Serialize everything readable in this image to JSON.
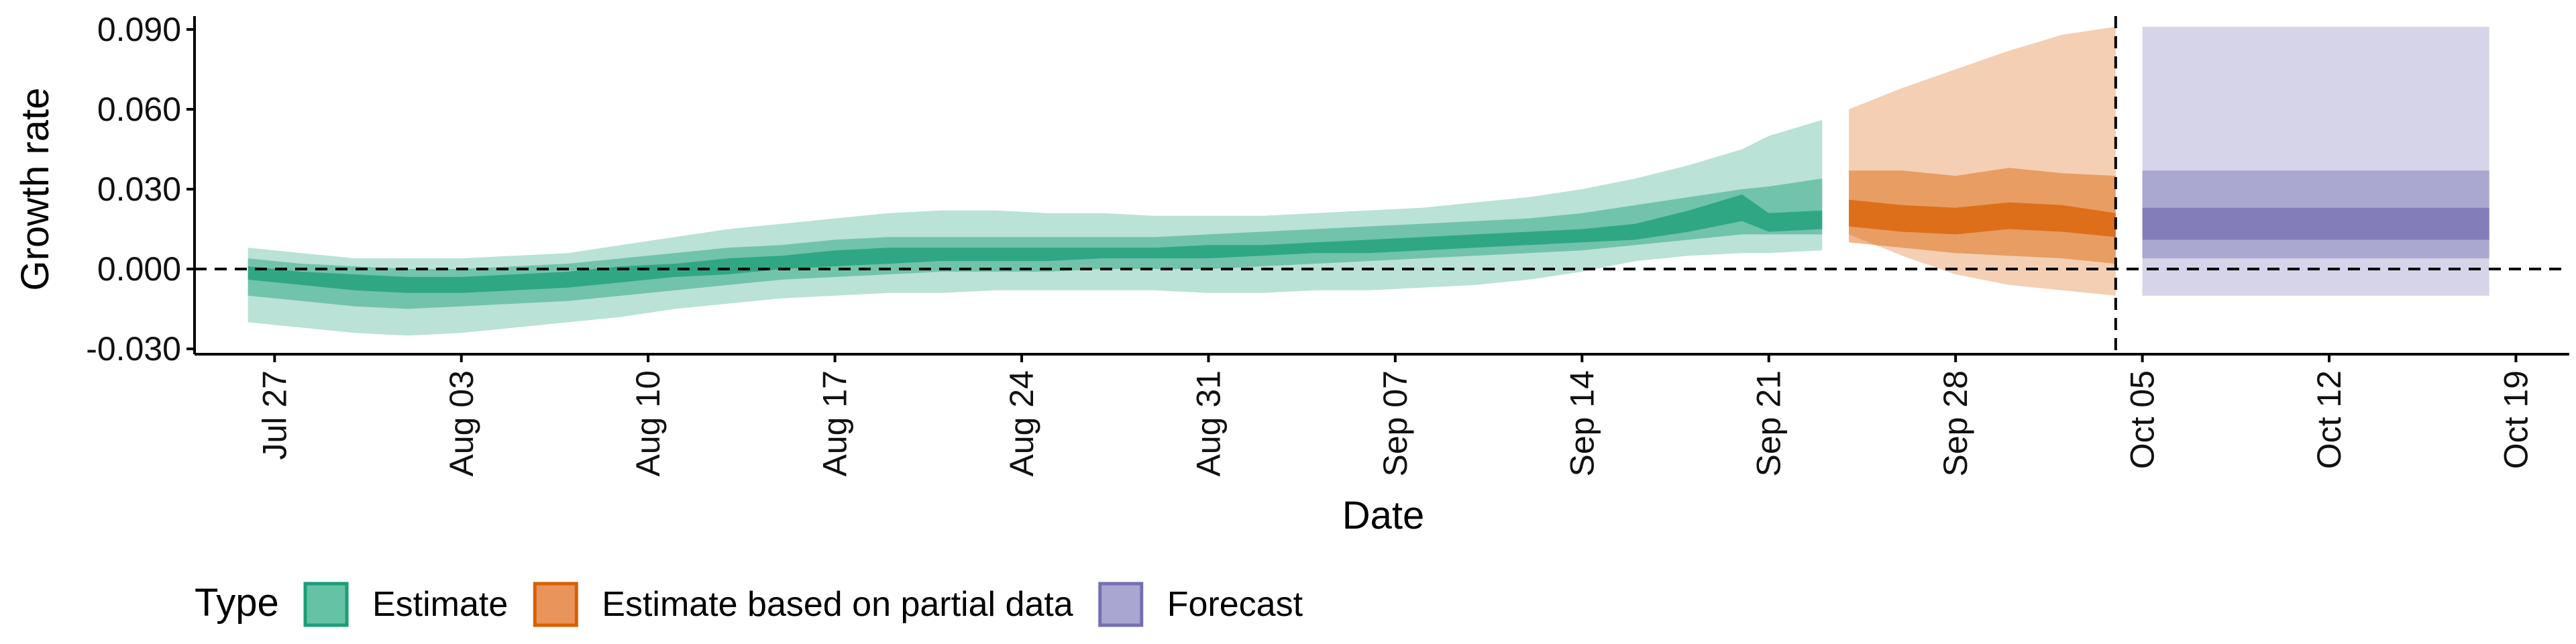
{
  "chart_data": {
    "type": "area",
    "xlabel": "Date",
    "ylabel": "Growth rate",
    "xlim": [
      "2020-07-24",
      "2020-10-21"
    ],
    "ylim": [
      -0.032,
      0.094
    ],
    "x_ticks": [
      {
        "date": "2020-07-27",
        "label": "Jul 27"
      },
      {
        "date": "2020-08-03",
        "label": "Aug 03"
      },
      {
        "date": "2020-08-10",
        "label": "Aug 10"
      },
      {
        "date": "2020-08-17",
        "label": "Aug 17"
      },
      {
        "date": "2020-08-24",
        "label": "Aug 24"
      },
      {
        "date": "2020-08-31",
        "label": "Aug 31"
      },
      {
        "date": "2020-09-07",
        "label": "Sep 07"
      },
      {
        "date": "2020-09-14",
        "label": "Sep 14"
      },
      {
        "date": "2020-09-21",
        "label": "Sep 21"
      },
      {
        "date": "2020-09-28",
        "label": "Sep 28"
      },
      {
        "date": "2020-10-05",
        "label": "Oct 05"
      },
      {
        "date": "2020-10-12",
        "label": "Oct 12"
      },
      {
        "date": "2020-10-19",
        "label": "Oct 19"
      }
    ],
    "y_ticks": [
      {
        "value": 0.09,
        "label": "0.090"
      },
      {
        "value": 0.06,
        "label": "0.060"
      },
      {
        "value": 0.03,
        "label": "0.030"
      },
      {
        "value": 0.0,
        "label": "0.000"
      },
      {
        "value": -0.03,
        "label": "-0.030"
      }
    ],
    "reference_lines": {
      "horizontal_y": 0.0,
      "vertical_date": "2020-10-04",
      "style": "dashed"
    },
    "legend": {
      "title": "Type",
      "position": "bottom-left",
      "items": [
        {
          "label": "Estimate",
          "color": "#66C2A5",
          "border": "#1B9E77"
        },
        {
          "label": "Estimate based on partial data",
          "color": "#E8945A",
          "border": "#D95F02"
        },
        {
          "label": "Forecast",
          "color": "#A9A6D2",
          "border": "#7570B3"
        }
      ]
    },
    "series": [
      {
        "name": "Estimate",
        "color": "#1B9E77",
        "x": [
          "2020-07-26",
          "2020-07-28",
          "2020-07-30",
          "2020-08-01",
          "2020-08-03",
          "2020-08-05",
          "2020-08-07",
          "2020-08-09",
          "2020-08-11",
          "2020-08-13",
          "2020-08-15",
          "2020-08-17",
          "2020-08-19",
          "2020-08-21",
          "2020-08-23",
          "2020-08-25",
          "2020-08-27",
          "2020-08-29",
          "2020-08-31",
          "2020-09-02",
          "2020-09-04",
          "2020-09-06",
          "2020-09-08",
          "2020-09-10",
          "2020-09-12",
          "2020-09-14",
          "2020-09-16",
          "2020-09-18",
          "2020-09-20",
          "2020-09-21",
          "2020-09-23"
        ],
        "median": [
          -0.002,
          -0.004,
          -0.005,
          -0.006,
          -0.006,
          -0.005,
          -0.004,
          -0.002,
          -0.001,
          0.001,
          0.002,
          0.004,
          0.005,
          0.005,
          0.005,
          0.006,
          0.006,
          0.006,
          0.006,
          0.007,
          0.008,
          0.009,
          0.009,
          0.01,
          0.011,
          0.012,
          0.014,
          0.018,
          0.023,
          0.017,
          0.018
        ],
        "inner_lower": [
          -0.004,
          -0.006,
          -0.008,
          -0.009,
          -0.009,
          -0.008,
          -0.007,
          -0.005,
          -0.003,
          -0.002,
          0.0,
          0.001,
          0.002,
          0.003,
          0.003,
          0.003,
          0.004,
          0.004,
          0.004,
          0.005,
          0.006,
          0.006,
          0.007,
          0.008,
          0.009,
          0.01,
          0.011,
          0.014,
          0.018,
          0.014,
          0.015
        ],
        "inner_upper": [
          0.001,
          -0.001,
          -0.002,
          -0.003,
          -0.003,
          -0.002,
          -0.001,
          0.001,
          0.002,
          0.004,
          0.005,
          0.007,
          0.008,
          0.008,
          0.008,
          0.008,
          0.008,
          0.008,
          0.009,
          0.009,
          0.01,
          0.011,
          0.012,
          0.013,
          0.014,
          0.015,
          0.017,
          0.022,
          0.028,
          0.021,
          0.022
        ],
        "mid_lower": [
          -0.01,
          -0.012,
          -0.014,
          -0.015,
          -0.014,
          -0.013,
          -0.012,
          -0.01,
          -0.008,
          -0.006,
          -0.004,
          -0.003,
          -0.002,
          -0.001,
          -0.001,
          -0.001,
          0.0,
          0.0,
          0.0,
          0.001,
          0.002,
          0.003,
          0.004,
          0.005,
          0.006,
          0.007,
          0.009,
          0.011,
          0.013,
          0.013,
          0.013
        ],
        "mid_upper": [
          0.004,
          0.002,
          0.001,
          0.0,
          0.0,
          0.001,
          0.002,
          0.004,
          0.006,
          0.008,
          0.009,
          0.011,
          0.012,
          0.012,
          0.012,
          0.012,
          0.012,
          0.012,
          0.013,
          0.014,
          0.015,
          0.016,
          0.017,
          0.018,
          0.019,
          0.021,
          0.024,
          0.027,
          0.03,
          0.031,
          0.034
        ],
        "outer_lower": [
          -0.02,
          -0.022,
          -0.024,
          -0.025,
          -0.024,
          -0.022,
          -0.02,
          -0.018,
          -0.015,
          -0.013,
          -0.011,
          -0.01,
          -0.009,
          -0.009,
          -0.008,
          -0.008,
          -0.008,
          -0.008,
          -0.009,
          -0.009,
          -0.008,
          -0.008,
          -0.007,
          -0.006,
          -0.004,
          -0.001,
          0.003,
          0.005,
          0.006,
          0.006,
          0.007
        ],
        "outer_upper": [
          0.008,
          0.006,
          0.004,
          0.004,
          0.004,
          0.005,
          0.006,
          0.009,
          0.012,
          0.015,
          0.017,
          0.019,
          0.021,
          0.022,
          0.022,
          0.021,
          0.021,
          0.02,
          0.02,
          0.02,
          0.021,
          0.022,
          0.023,
          0.025,
          0.027,
          0.03,
          0.034,
          0.039,
          0.045,
          0.05,
          0.056
        ]
      },
      {
        "name": "Estimate based on partial data",
        "color": "#D95F02",
        "x": [
          "2020-09-24",
          "2020-09-26",
          "2020-09-28",
          "2020-09-30",
          "2020-10-02",
          "2020-10-04"
        ],
        "median": [
          0.021,
          0.019,
          0.018,
          0.02,
          0.019,
          0.016
        ],
        "inner_lower": [
          0.016,
          0.014,
          0.013,
          0.015,
          0.014,
          0.012
        ],
        "inner_upper": [
          0.026,
          0.024,
          0.023,
          0.025,
          0.024,
          0.021
        ],
        "mid_lower": [
          0.01,
          0.008,
          0.006,
          0.005,
          0.004,
          0.002
        ],
        "mid_upper": [
          0.037,
          0.037,
          0.035,
          0.038,
          0.036,
          0.035
        ],
        "outer_lower": [
          0.013,
          0.005,
          -0.002,
          -0.006,
          -0.008,
          -0.01
        ],
        "outer_upper": [
          0.06,
          0.068,
          0.075,
          0.082,
          0.088,
          0.091
        ]
      },
      {
        "name": "Forecast",
        "color": "#7570B3",
        "x": [
          "2020-10-05",
          "2020-10-18"
        ],
        "median": [
          0.016,
          0.016
        ],
        "inner_lower": [
          0.011,
          0.011
        ],
        "inner_upper": [
          0.023,
          0.023
        ],
        "mid_lower": [
          0.004,
          0.004
        ],
        "mid_upper": [
          0.037,
          0.037
        ],
        "outer_lower": [
          -0.01,
          -0.01
        ],
        "outer_upper": [
          0.091,
          0.091
        ]
      }
    ]
  }
}
